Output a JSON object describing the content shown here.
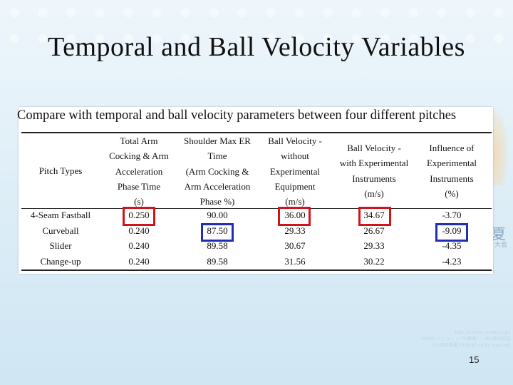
{
  "slide": {
    "title": "Temporal and Ball Velocity Variables",
    "page_number": "15"
  },
  "table": {
    "title": "Compare with temporal and ball velocity parameters between four different pitches",
    "headers": [
      "Pitch Types",
      "Total Arm\nCocking & Arm\nAcceleration\nPhase Time\n(s)",
      "Shoulder Max ER\nTime\n(Arm Cocking &\nArm Acceleration\nPhase %)",
      "Ball Velocity -\nwithout\nExperimental\nEquipment\n(m/s)",
      "Ball Velocity -\nwith Experimental\nInstruments\n(m/s)",
      "Influence of\nExperimental\nInstruments\n(%)"
    ],
    "rows": [
      [
        "4-Seam Fastball",
        "0.250",
        "90.00",
        "36.00",
        "34.67",
        "-3.70"
      ],
      [
        "Curveball",
        "0.240",
        "87.50",
        "29.33",
        "26.67",
        "-9.09"
      ],
      [
        "Slider",
        "0.240",
        "89.58",
        "30.67",
        "29.33",
        "-4.35"
      ],
      [
        "Change-up",
        "0.240",
        "89.58",
        "31.56",
        "30.22",
        "-4.23"
      ]
    ],
    "highlight_colors": {
      "red": "#d0141c",
      "blue": "#1f2eb5"
    }
  },
  "background": {
    "watermark": "夏",
    "watermark_sub": "大会",
    "credits": [
      "http://koshien.asahi.co.jp/",
      "Mobile メニュー > TV(動画) > ABC朝日放送",
      "(C) 朝日新聞 2008 All rights reserved"
    ]
  }
}
